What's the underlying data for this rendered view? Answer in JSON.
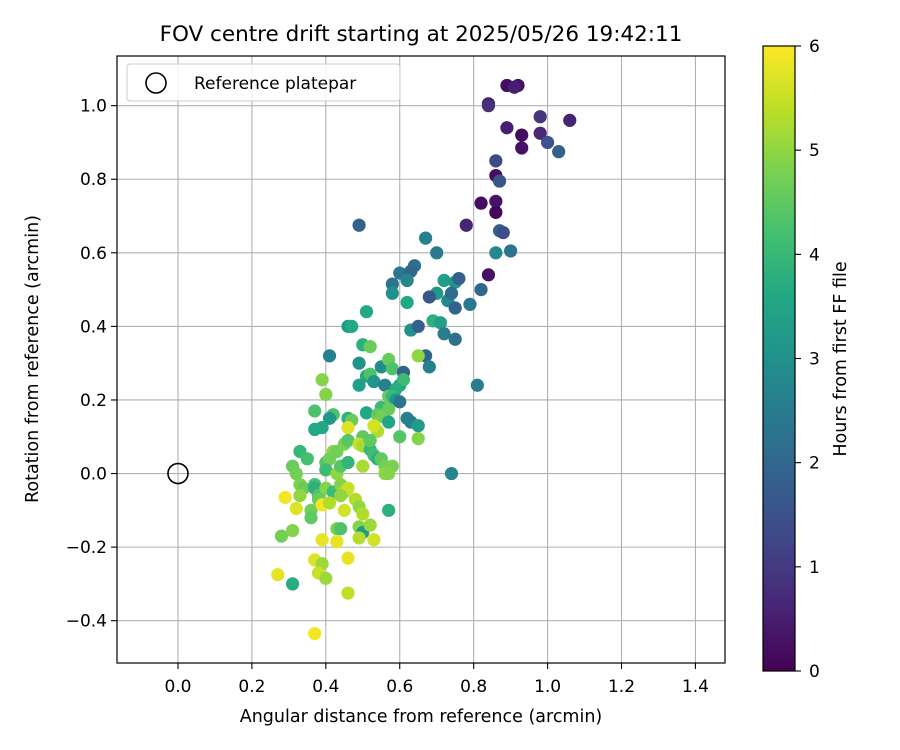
{
  "chart_data": {
    "type": "scatter",
    "title": "FOV centre drift starting at 2025/05/26 19:42:11",
    "xlabel": "Angular distance from reference (arcmin)",
    "ylabel": "Rotation from reference (arcmin)",
    "xlim": [
      -0.165,
      1.48
    ],
    "ylim": [
      -0.515,
      1.135
    ],
    "xticks": [
      "0.0",
      "0.2",
      "0.4",
      "0.6",
      "0.8",
      "1.0",
      "1.2",
      "1.4"
    ],
    "yticks": [
      "−0.4",
      "−0.2",
      "0.0",
      "0.2",
      "0.4",
      "0.6",
      "0.8",
      "1.0"
    ],
    "grid": true,
    "legend": {
      "placement": "top-left",
      "entries": [
        "Reference platepar"
      ]
    },
    "colorbar": {
      "label": "Hours from first FF file",
      "range": [
        0,
        6
      ],
      "ticks": [
        "0",
        "1",
        "2",
        "3",
        "4",
        "5",
        "6"
      ],
      "colormap": "viridis"
    },
    "reference_point": {
      "x": 0.0,
      "y": 0.0
    },
    "points": [
      [
        0.89,
        1.055,
        0.2
      ],
      [
        0.92,
        1.055,
        0.3
      ],
      [
        0.91,
        1.05,
        0.5
      ],
      [
        0.84,
        1.005,
        0.4
      ],
      [
        0.84,
        1.0,
        0.8
      ],
      [
        0.93,
        0.92,
        0.2
      ],
      [
        0.93,
        0.885,
        0.3
      ],
      [
        0.89,
        0.94,
        0.5
      ],
      [
        0.98,
        0.97,
        0.9
      ],
      [
        0.98,
        0.925,
        0.7
      ],
      [
        1.06,
        0.96,
        0.6
      ],
      [
        1.0,
        0.9,
        1.5
      ],
      [
        1.03,
        0.875,
        1.8
      ],
      [
        0.86,
        0.85,
        1.3
      ],
      [
        0.86,
        0.81,
        0.2
      ],
      [
        0.87,
        0.795,
        1.6
      ],
      [
        0.82,
        0.735,
        0.2
      ],
      [
        0.86,
        0.74,
        0.3
      ],
      [
        0.86,
        0.71,
        0.1
      ],
      [
        0.78,
        0.675,
        0.6
      ],
      [
        0.87,
        0.66,
        1.9
      ],
      [
        0.88,
        0.655,
        1.4
      ],
      [
        0.84,
        0.54,
        0.3
      ],
      [
        0.49,
        0.675,
        1.9
      ],
      [
        0.67,
        0.64,
        2.6
      ],
      [
        0.7,
        0.6,
        2.5
      ],
      [
        0.86,
        0.6,
        2.8
      ],
      [
        0.9,
        0.605,
        2.3
      ],
      [
        0.6,
        0.545,
        2.4
      ],
      [
        0.64,
        0.565,
        2.2
      ],
      [
        0.63,
        0.55,
        2.0
      ],
      [
        0.62,
        0.525,
        2.7
      ],
      [
        0.58,
        0.515,
        2.3
      ],
      [
        0.58,
        0.49,
        3.0
      ],
      [
        0.72,
        0.525,
        3.4
      ],
      [
        0.75,
        0.52,
        3.1
      ],
      [
        0.76,
        0.53,
        1.8
      ],
      [
        0.7,
        0.49,
        3.2
      ],
      [
        0.68,
        0.48,
        1.6
      ],
      [
        0.73,
        0.47,
        2.8
      ],
      [
        0.74,
        0.49,
        2.1
      ],
      [
        0.75,
        0.45,
        1.9
      ],
      [
        0.79,
        0.46,
        2.4
      ],
      [
        0.82,
        0.5,
        2.0
      ],
      [
        0.62,
        0.465,
        3.6
      ],
      [
        0.51,
        0.44,
        3.6
      ],
      [
        0.63,
        0.39,
        3.0
      ],
      [
        0.65,
        0.4,
        1.8
      ],
      [
        0.69,
        0.415,
        3.8
      ],
      [
        0.71,
        0.41,
        3.4
      ],
      [
        0.72,
        0.38,
        2.5
      ],
      [
        0.75,
        0.365,
        2.2
      ],
      [
        0.67,
        0.32,
        1.9
      ],
      [
        0.65,
        0.32,
        5.0
      ],
      [
        0.68,
        0.29,
        2.6
      ],
      [
        0.46,
        0.4,
        3.2
      ],
      [
        0.47,
        0.4,
        3.6
      ],
      [
        0.41,
        0.32,
        2.6
      ],
      [
        0.5,
        0.35,
        3.8
      ],
      [
        0.52,
        0.345,
        4.6
      ],
      [
        0.49,
        0.3,
        3.0
      ],
      [
        0.55,
        0.29,
        2.9
      ],
      [
        0.57,
        0.31,
        4.6
      ],
      [
        0.58,
        0.285,
        4.3
      ],
      [
        0.61,
        0.275,
        1.9
      ],
      [
        0.51,
        0.265,
        3.6
      ],
      [
        0.52,
        0.27,
        4.3
      ],
      [
        0.53,
        0.25,
        3.1
      ],
      [
        0.56,
        0.24,
        2.6
      ],
      [
        0.6,
        0.24,
        3.4
      ],
      [
        0.61,
        0.255,
        4.1
      ],
      [
        0.59,
        0.23,
        3.7
      ],
      [
        0.49,
        0.24,
        3.4
      ],
      [
        0.39,
        0.255,
        4.9
      ],
      [
        0.4,
        0.215,
        4.9
      ],
      [
        0.57,
        0.21,
        4.6
      ],
      [
        0.58,
        0.21,
        4.0
      ],
      [
        0.59,
        0.2,
        3.2
      ],
      [
        0.6,
        0.195,
        2.3
      ],
      [
        0.55,
        0.18,
        4.1
      ],
      [
        0.57,
        0.175,
        4.6
      ],
      [
        0.51,
        0.165,
        3.6
      ],
      [
        0.54,
        0.16,
        4.5
      ],
      [
        0.55,
        0.155,
        4.7
      ],
      [
        0.57,
        0.14,
        3.5
      ],
      [
        0.62,
        0.15,
        2.6
      ],
      [
        0.63,
        0.14,
        2.6
      ],
      [
        0.65,
        0.13,
        3.3
      ],
      [
        0.46,
        0.15,
        3.8
      ],
      [
        0.47,
        0.145,
        4.6
      ],
      [
        0.42,
        0.16,
        4.3
      ],
      [
        0.41,
        0.15,
        3.2
      ],
      [
        0.37,
        0.17,
        4.3
      ],
      [
        0.37,
        0.12,
        3.6
      ],
      [
        0.39,
        0.125,
        3.6
      ],
      [
        0.46,
        0.125,
        5.7
      ],
      [
        0.5,
        0.1,
        4.5
      ],
      [
        0.54,
        0.115,
        5.3
      ],
      [
        0.53,
        0.13,
        5.6
      ],
      [
        0.6,
        0.1,
        4.4
      ],
      [
        0.65,
        0.095,
        4.9
      ],
      [
        0.42,
        0.06,
        5.0
      ],
      [
        0.43,
        0.06,
        4.7
      ],
      [
        0.45,
        0.08,
        4.8
      ],
      [
        0.46,
        0.09,
        4.4
      ],
      [
        0.49,
        0.08,
        5.5
      ],
      [
        0.5,
        0.075,
        5.2
      ],
      [
        0.52,
        0.065,
        4.0
      ],
      [
        0.52,
        0.09,
        4.5
      ],
      [
        0.53,
        0.05,
        4.2
      ],
      [
        0.54,
        0.04,
        3.8
      ],
      [
        0.55,
        0.04,
        4.5
      ],
      [
        0.56,
        0.02,
        4.7
      ],
      [
        0.58,
        0.02,
        4.8
      ],
      [
        0.56,
        0.0,
        5.0
      ],
      [
        0.57,
        0.0,
        4.9
      ],
      [
        0.33,
        0.06,
        4.0
      ],
      [
        0.35,
        0.04,
        4.2
      ],
      [
        0.31,
        0.02,
        4.6
      ],
      [
        0.32,
        0.0,
        4.7
      ],
      [
        0.4,
        0.03,
        4.4
      ],
      [
        0.41,
        0.04,
        4.7
      ],
      [
        0.4,
        0.01,
        4.1
      ],
      [
        0.43,
        0.0,
        5.0
      ],
      [
        0.44,
        0.02,
        4.4
      ],
      [
        0.5,
        0.02,
        5.2
      ],
      [
        0.46,
        0.03,
        3.9
      ],
      [
        0.74,
        0.0,
        2.7
      ],
      [
        0.33,
        -0.03,
        4.8
      ],
      [
        0.34,
        -0.04,
        4.6
      ],
      [
        0.37,
        -0.03,
        4.2
      ],
      [
        0.37,
        -0.04,
        3.8
      ],
      [
        0.38,
        -0.06,
        4.3
      ],
      [
        0.38,
        -0.07,
        4.6
      ],
      [
        0.4,
        -0.04,
        4.9
      ],
      [
        0.42,
        -0.05,
        4.1
      ],
      [
        0.44,
        -0.03,
        4.9
      ],
      [
        0.45,
        -0.05,
        5.2
      ],
      [
        0.46,
        -0.04,
        5.5
      ],
      [
        0.44,
        -0.06,
        5.0
      ],
      [
        0.48,
        -0.07,
        5.3
      ],
      [
        0.49,
        -0.09,
        5.0
      ],
      [
        0.5,
        -0.11,
        5.3
      ],
      [
        0.29,
        -0.065,
        5.9
      ],
      [
        0.33,
        -0.06,
        5.0
      ],
      [
        0.32,
        -0.095,
        5.7
      ],
      [
        0.36,
        -0.1,
        4.7
      ],
      [
        0.36,
        -0.12,
        4.5
      ],
      [
        0.39,
        -0.085,
        5.9
      ],
      [
        0.41,
        -0.08,
        5.3
      ],
      [
        0.45,
        -0.1,
        5.6
      ],
      [
        0.43,
        -0.15,
        4.8
      ],
      [
        0.44,
        -0.15,
        4.3
      ],
      [
        0.49,
        -0.145,
        4.9
      ],
      [
        0.5,
        -0.16,
        3.2
      ],
      [
        0.52,
        -0.14,
        5.1
      ],
      [
        0.57,
        -0.1,
        3.8
      ],
      [
        0.39,
        -0.18,
        5.8
      ],
      [
        0.43,
        -0.185,
        5.8
      ],
      [
        0.49,
        -0.175,
        5.3
      ],
      [
        0.53,
        -0.18,
        5.6
      ],
      [
        0.28,
        -0.17,
        4.7
      ],
      [
        0.31,
        -0.155,
        4.9
      ],
      [
        0.27,
        -0.275,
        5.8
      ],
      [
        0.31,
        -0.3,
        3.7
      ],
      [
        0.37,
        -0.235,
        5.7
      ],
      [
        0.39,
        -0.245,
        5.1
      ],
      [
        0.38,
        -0.27,
        5.5
      ],
      [
        0.4,
        -0.285,
        5.1
      ],
      [
        0.46,
        -0.23,
        5.8
      ],
      [
        0.46,
        -0.325,
        5.4
      ],
      [
        0.37,
        -0.435,
        5.9
      ],
      [
        0.81,
        0.24,
        2.5
      ]
    ]
  }
}
